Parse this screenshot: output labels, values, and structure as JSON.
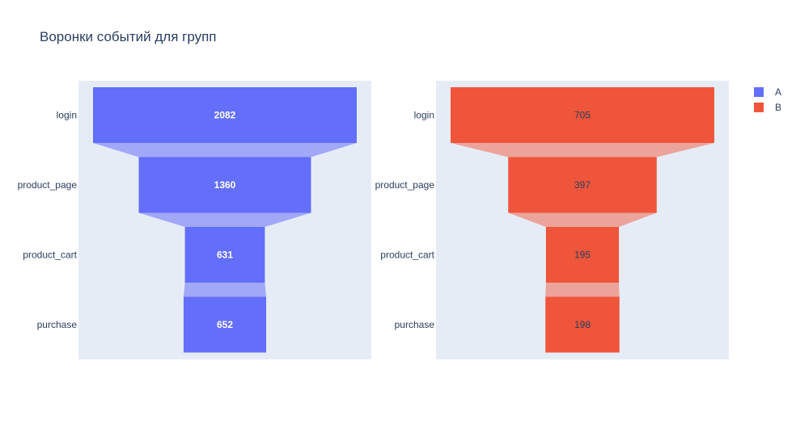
{
  "title": "Воронки событий для групп",
  "chart_data": [
    {
      "type": "funnel",
      "name": "A",
      "color": "#636efa",
      "connector_color": "#a1a8f7",
      "text_color": "#ffffff",
      "categories": [
        "login",
        "product_page",
        "product_cart",
        "purchase"
      ],
      "values": [
        2082,
        1360,
        631,
        652
      ]
    },
    {
      "type": "funnel",
      "name": "B",
      "color": "#ef553b",
      "connector_color": "#eca39a",
      "text_color": "#2a3f5f",
      "categories": [
        "login",
        "product_page",
        "product_cart",
        "purchase"
      ],
      "values": [
        705,
        397,
        195,
        198
      ]
    }
  ],
  "legend": {
    "placement": "top-right",
    "items": [
      {
        "label": "A",
        "color": "#636efa"
      },
      {
        "label": "B",
        "color": "#ef553b"
      }
    ]
  },
  "background": {
    "plot": "#e5ecf6"
  }
}
